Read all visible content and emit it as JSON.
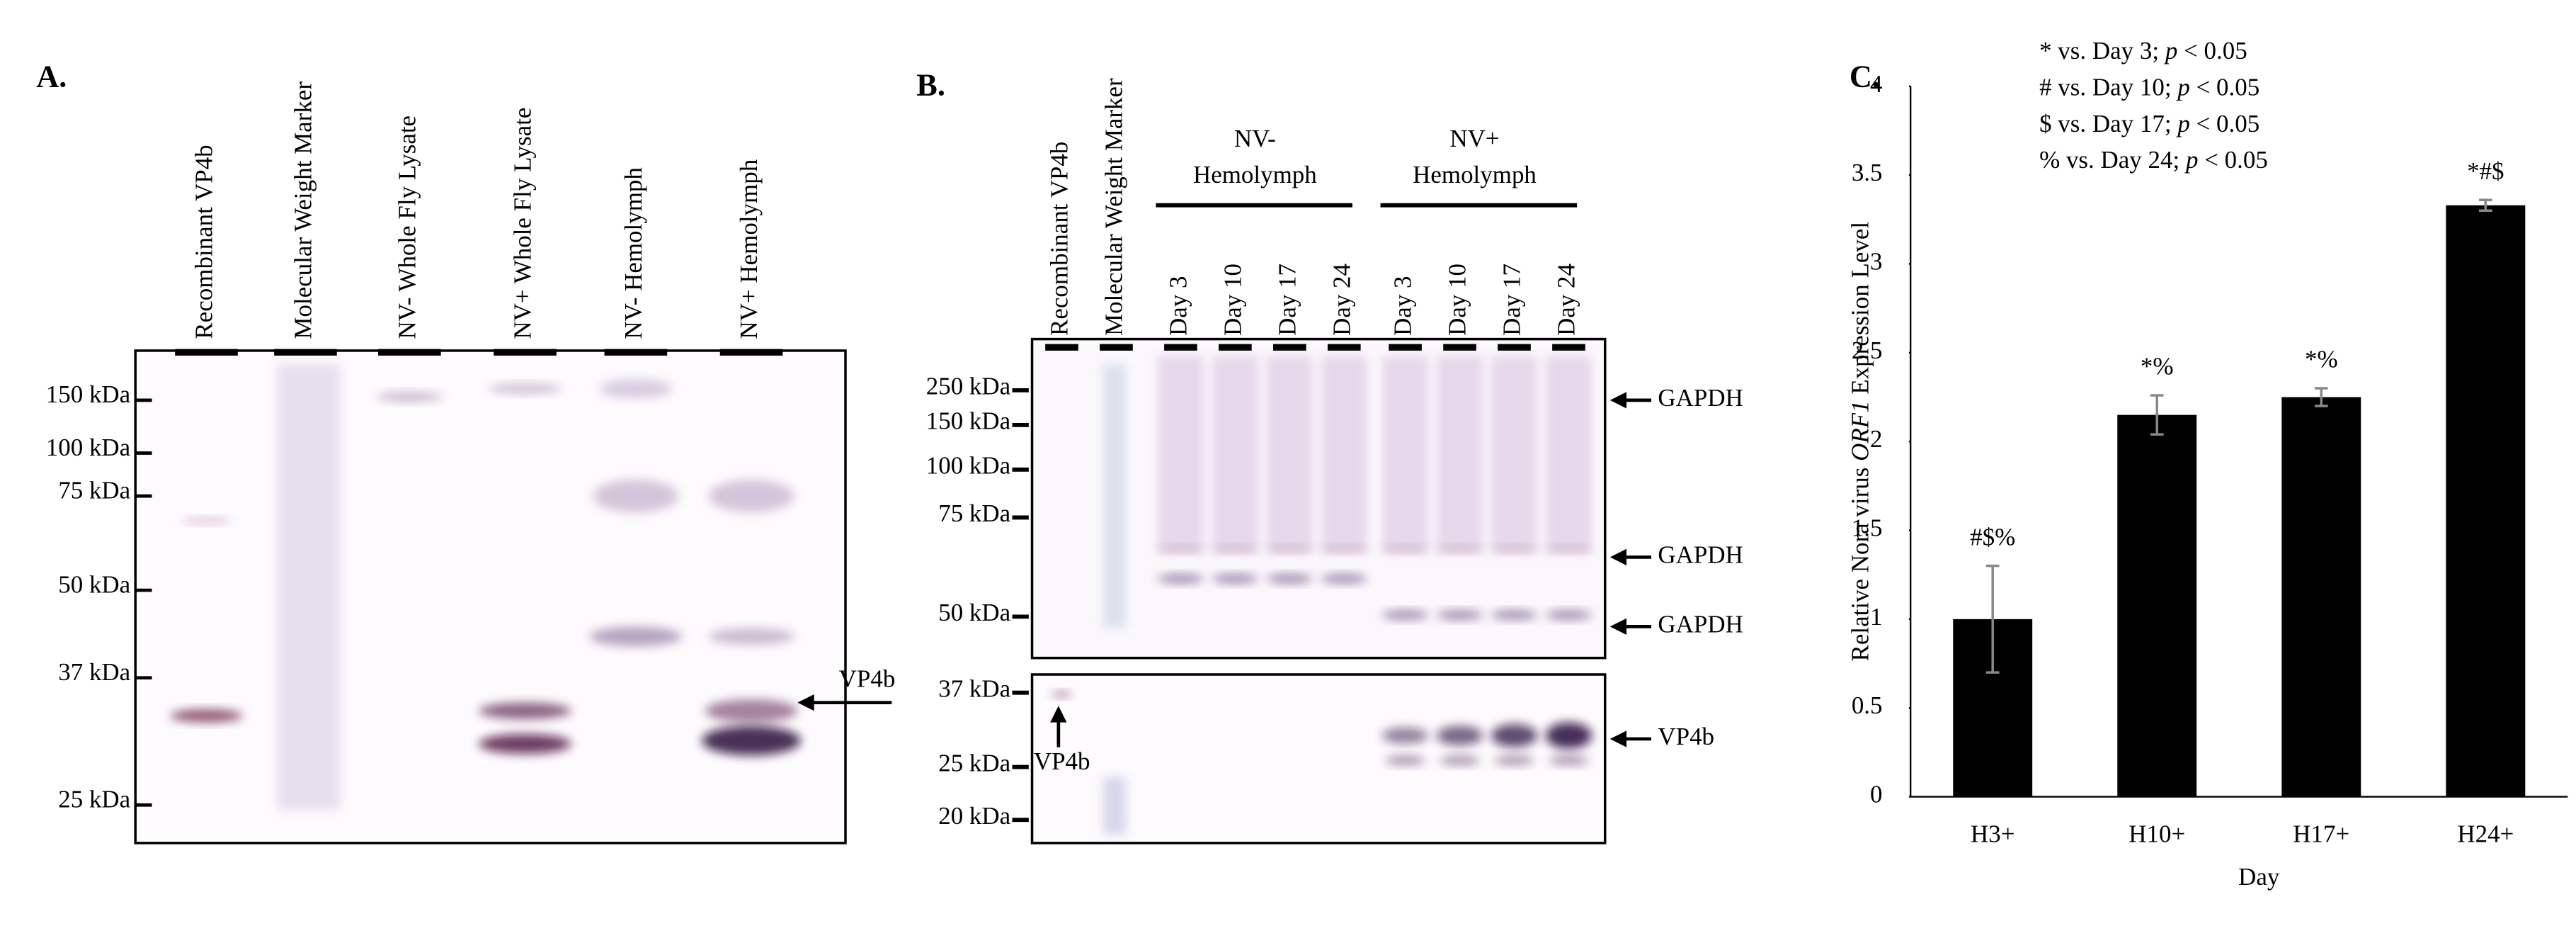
{
  "panel_a": {
    "label": "A.",
    "lanes": [
      "Recombinant VP4b",
      "Molecular Weight Marker",
      "NV- Whole Fly Lysate",
      "NV+ Whole Fly Lysate",
      "NV- Hemolymph",
      "NV+ Hemolymph"
    ],
    "markers": [
      "150 kDa",
      "100 kDa",
      "75 kDa",
      "50 kDa",
      "37 kDa",
      "25 kDa"
    ],
    "arrow_label": "VP4b"
  },
  "panel_b": {
    "label": "B.",
    "lanes": [
      "Recombinant VP4b",
      "Molecular Weight Marker"
    ],
    "groups": [
      {
        "name_lines": [
          "NV-",
          "Hemolymph"
        ],
        "days": [
          "Day 3",
          "Day 10",
          "Day 17",
          "Day 24"
        ]
      },
      {
        "name_lines": [
          "NV+",
          "Hemolymph"
        ],
        "days": [
          "Day 3",
          "Day 10",
          "Day 17",
          "Day 24"
        ]
      }
    ],
    "markers_top": [
      "250 kDa",
      "150 kDa",
      "100 kDa",
      "75 kDa",
      "50 kDa"
    ],
    "markers_bottom": [
      "37 kDa",
      "25 kDa",
      "20 kDa"
    ],
    "arrows": [
      "GAPDH",
      "GAPDH",
      "GAPDH",
      "VP4b"
    ],
    "inner_label": "VP4b"
  },
  "chart_data": {
    "type": "bar",
    "panel_label": "C.",
    "xlabel": "Day",
    "ylabel_parts": [
      "Relative Nora virus ",
      "ORF1",
      " Expression Level"
    ],
    "notes": [
      [
        "* vs. Day 3; ",
        "p",
        " < 0.05"
      ],
      [
        "# vs. Day 10; ",
        "p",
        " < 0.05"
      ],
      [
        "$ vs. Day 17; ",
        "p",
        " < 0.05"
      ],
      [
        "% vs. Day 24; ",
        "p",
        " < 0.05"
      ]
    ],
    "categories": [
      "H3+",
      "H10+",
      "H17+",
      "H24+"
    ],
    "series": [
      {
        "color": "#000000",
        "values": [
          1,
          2.15,
          2.25,
          3.33
        ],
        "errors": [
          0.3,
          0.11,
          0.05,
          0.03
        ],
        "annotations": [
          "#$%",
          "*%",
          "*%",
          "*#$"
        ]
      }
    ],
    "ylim": [
      0,
      4
    ],
    "yticks": [
      0,
      0.5,
      1,
      1.5,
      2,
      2.5,
      3,
      3.5,
      4
    ],
    "grid": false
  }
}
